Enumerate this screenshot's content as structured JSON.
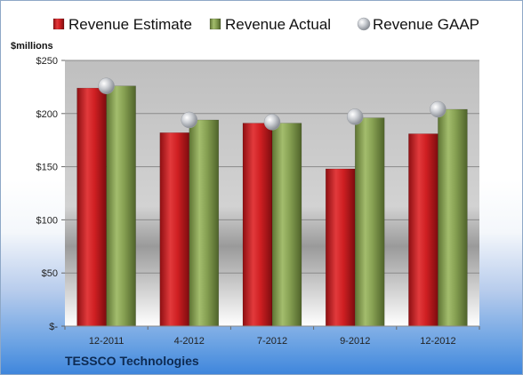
{
  "chart_data": {
    "type": "bar",
    "categories": [
      "12-2011",
      "4-2012",
      "7-2012",
      "9-2012",
      "12-2012"
    ],
    "series": [
      {
        "name": "Revenue Estimate",
        "kind": "bar",
        "color": "#c8191c",
        "values": [
          224,
          182,
          191,
          148,
          181
        ]
      },
      {
        "name": "Revenue Actual",
        "kind": "bar",
        "color": "#7d9a48",
        "values": [
          226,
          194,
          191,
          196,
          204
        ]
      },
      {
        "name": "Revenue GAAP",
        "kind": "marker",
        "color": "#b9bcc2",
        "values": [
          226,
          194,
          192,
          197,
          204
        ]
      }
    ],
    "ylabel": "$millions",
    "ylim": [
      0,
      250
    ],
    "yticks": [
      0,
      50,
      100,
      150,
      200,
      250
    ],
    "ytick_labels": [
      "$-",
      "$50",
      "$100",
      "$150",
      "$200",
      "$250"
    ],
    "grid": true,
    "legend_position": "top"
  },
  "footer": {
    "company": "TESSCO Technologies"
  }
}
